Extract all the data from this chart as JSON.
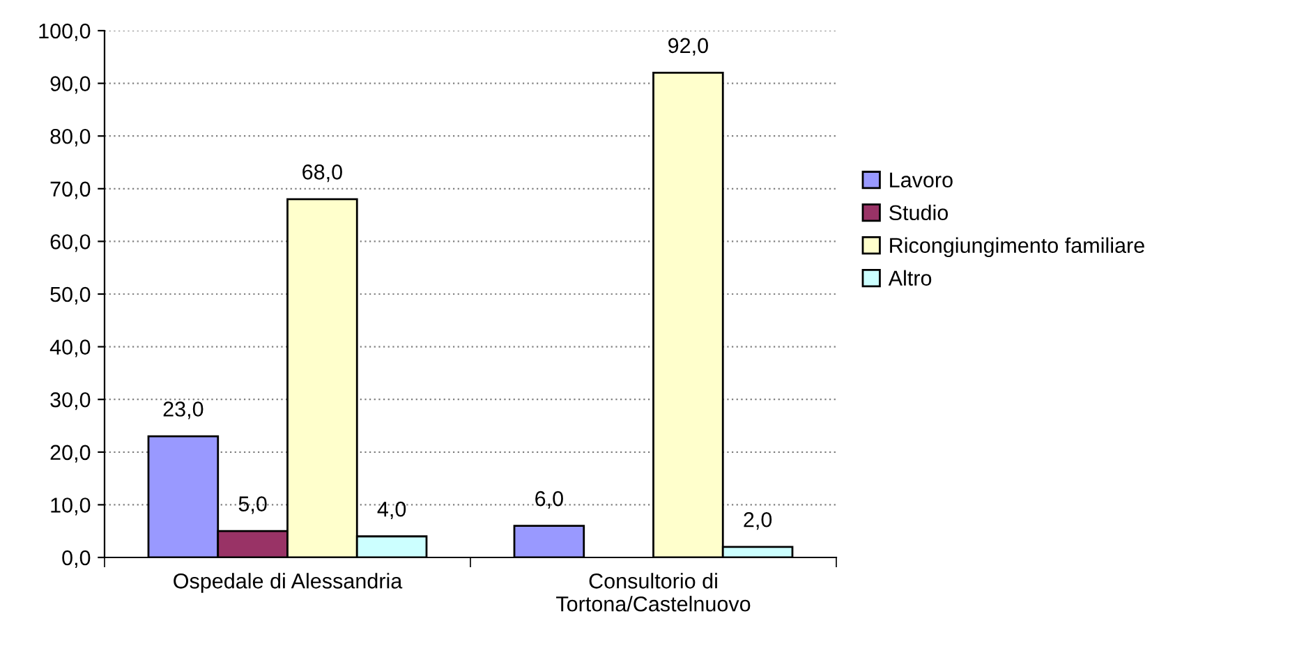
{
  "chart_data": {
    "type": "bar",
    "categories": [
      "Ospedale di Alessandria",
      "Consultorio di\nTortona/Castelnuovo"
    ],
    "series": [
      {
        "name": "Lavoro",
        "color": "#9999ff",
        "values": [
          23.0,
          6.0
        ],
        "value_labels": [
          "23,0",
          "6,0"
        ]
      },
      {
        "name": "Studio",
        "color": "#993366",
        "values": [
          5.0,
          null
        ],
        "value_labels": [
          "5,0",
          null
        ]
      },
      {
        "name": "Ricongiungimento familiare",
        "color": "#ffffcc",
        "values": [
          68.0,
          92.0
        ],
        "value_labels": [
          "68,0",
          "92,0"
        ]
      },
      {
        "name": "Altro",
        "color": "#ccffff",
        "values": [
          4.0,
          2.0
        ],
        "value_labels": [
          "4,0",
          "2,0"
        ]
      }
    ],
    "ylim": [
      0,
      100
    ],
    "yticks": [
      {
        "value": 0,
        "label": "0,0"
      },
      {
        "value": 10,
        "label": "10,0"
      },
      {
        "value": 20,
        "label": "20,0"
      },
      {
        "value": 30,
        "label": "30,0"
      },
      {
        "value": 40,
        "label": "40,0"
      },
      {
        "value": 50,
        "label": "50,0"
      },
      {
        "value": 60,
        "label": "60,0"
      },
      {
        "value": 70,
        "label": "70,0"
      },
      {
        "value": 80,
        "label": "80,0"
      },
      {
        "value": 90,
        "label": "90,0"
      },
      {
        "value": 100,
        "label": "100,0"
      }
    ],
    "grid": "y",
    "legend": "right"
  }
}
